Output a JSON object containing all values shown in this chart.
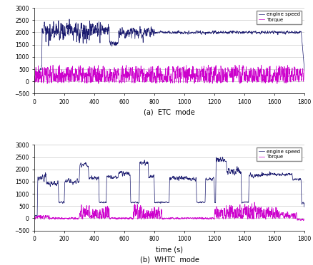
{
  "fig_width": 4.39,
  "fig_height": 3.72,
  "dpi": 100,
  "speed_color": "#1a1a6e",
  "torque_color": "#cc00cc",
  "ylim": [
    -500,
    3000
  ],
  "xlim": [
    0,
    1800
  ],
  "yticks": [
    -500,
    0,
    500,
    1000,
    1500,
    2000,
    2500,
    3000
  ],
  "xticks": [
    0,
    200,
    400,
    600,
    800,
    1000,
    1200,
    1400,
    1600,
    1800
  ],
  "xlabel": "time (s)",
  "label_a": "(a)  ETC  mode",
  "label_b": "(b)  WHTC  mode",
  "legend_speed": "engine speed",
  "legend_torque": "Torque",
  "linewidth": 0.5,
  "bg_color": "#ffffff",
  "grid_color": "#bbbbbb",
  "grid_lw": 0.4
}
